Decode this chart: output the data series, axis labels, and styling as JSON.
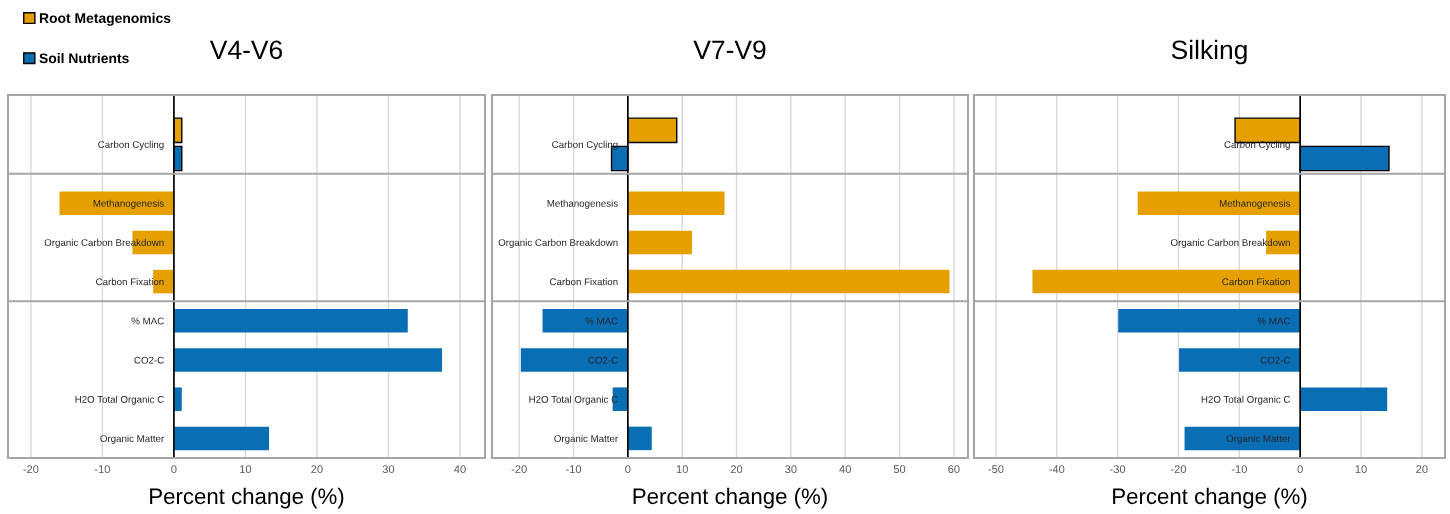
{
  "chart_data": [
    {
      "type": "bar",
      "orientation": "horizontal",
      "title": "V4-V6",
      "xlabel": "Percent change (%)",
      "categories": [
        "Carbon Cycling",
        "Methanogenesis",
        "Organic Carbon Breakdown",
        "Carbon Fixation",
        "% MAC",
        "CO2-C",
        "H2O Total Organic C",
        "Organic Matter"
      ],
      "series": [
        {
          "name": "Root Metagenomics",
          "color": "#e5a000",
          "values": [
            1.1,
            -16.0,
            -5.8,
            -2.9,
            null,
            null,
            null,
            null
          ]
        },
        {
          "name": "Soil Nutrients",
          "color": "#0a6eb5",
          "values": [
            1.1,
            null,
            null,
            null,
            32.7,
            37.5,
            1.1,
            13.3
          ]
        }
      ],
      "xlim": [
        -23.2,
        43.5
      ],
      "xticks": [
        -20,
        -10,
        0,
        10,
        20,
        30,
        40
      ],
      "grid": "x",
      "legend": "top left"
    },
    {
      "type": "bar",
      "orientation": "horizontal",
      "title": "V7-V9",
      "xlabel": "Percent change (%)",
      "categories": [
        "Carbon Cycling",
        "Methanogenesis",
        "Organic Carbon Breakdown",
        "Carbon Fixation",
        "% MAC",
        "CO2-C",
        "H2O Total Organic C",
        "Organic Matter"
      ],
      "series": [
        {
          "color": "#e5a000",
          "values": [
            9.0,
            17.8,
            11.8,
            59.2,
            null,
            null,
            null,
            null
          ]
        },
        {
          "color": "#0a6eb5",
          "values": [
            -3.0,
            null,
            null,
            null,
            -15.7,
            -19.7,
            -2.8,
            4.4
          ]
        }
      ],
      "xlim": [
        -25,
        62.6
      ],
      "xticks": [
        -20,
        -10,
        0,
        10,
        20,
        30,
        40,
        50,
        60
      ],
      "grid": "x"
    },
    {
      "type": "bar",
      "orientation": "horizontal",
      "title": "Silking",
      "xlabel": "Percent change (%)",
      "categories": [
        "Carbon Cycling",
        "Methanogenesis",
        "Organic Carbon Breakdown",
        "Carbon Fixation",
        "% MAC",
        "CO2-C",
        "H2O Total Organic C",
        "Organic Matter"
      ],
      "series": [
        {
          "color": "#e5a000",
          "values": [
            -10.7,
            -26.7,
            -5.6,
            -44.0,
            null,
            null,
            null,
            null
          ]
        },
        {
          "color": "#0a6eb5",
          "values": [
            14.6,
            null,
            null,
            null,
            -29.9,
            -19.9,
            14.3,
            -19.0
          ]
        }
      ],
      "xlim": [
        -53.6,
        23.8
      ],
      "xticks": [
        -50,
        -40,
        -30,
        -20,
        -10,
        0,
        10,
        20
      ],
      "grid": "x"
    }
  ]
}
